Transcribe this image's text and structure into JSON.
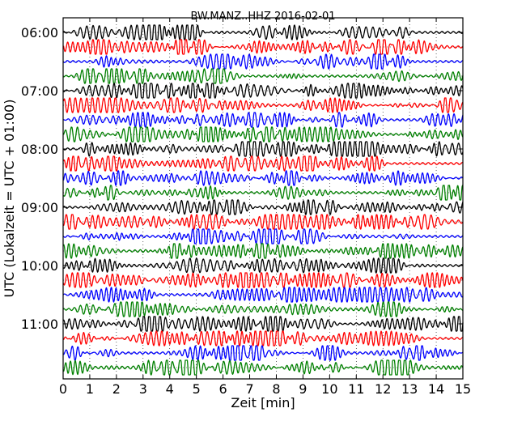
{
  "chart_data": {
    "type": "line",
    "title": "BW.MANZ..HHZ 2016-02-01",
    "xlabel": "Zeit  [min]",
    "ylabel": "UTC (Lokalzeit = UTC + 01:00)",
    "xlim": [
      0,
      15
    ],
    "x_ticks": [
      "0",
      "1",
      "2",
      "3",
      "4",
      "5",
      "6",
      "7",
      "8",
      "9",
      "10",
      "11",
      "12",
      "13",
      "14",
      "15"
    ],
    "y_ticks": [
      "06:00",
      "07:00",
      "08:00",
      "09:00",
      "10:00",
      "11:00"
    ],
    "grid": true,
    "trace_colors": [
      "#000000",
      "#ff0000",
      "#0000ff",
      "#008000"
    ],
    "trace_count": 24,
    "trace_start_time": "06:00",
    "trace_interval_min": 15
  }
}
